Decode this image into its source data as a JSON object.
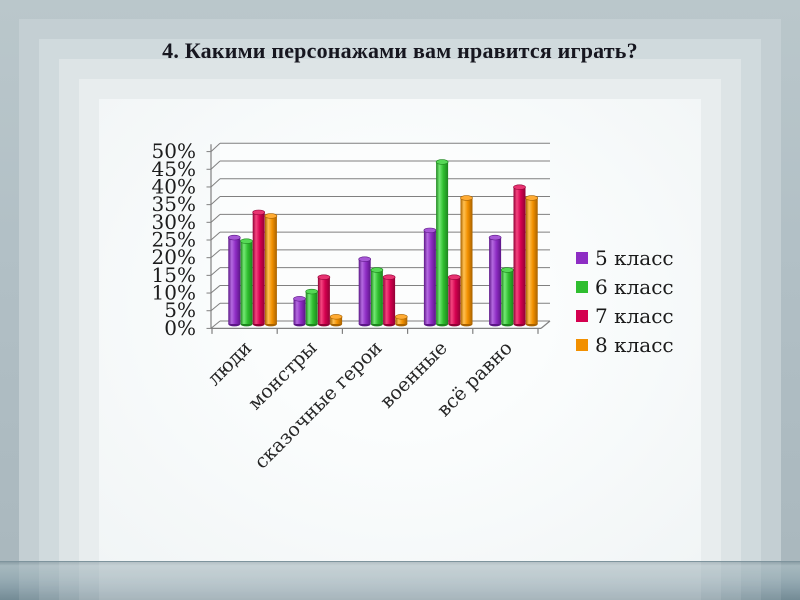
{
  "slide": {
    "title": "4. Какими персонажами вам нравится играть?"
  },
  "chart_data": {
    "type": "bar",
    "subtype": "3d-cylinder-column",
    "title": "",
    "xlabel": "",
    "ylabel": "",
    "categories": [
      "люди",
      "монстры",
      "сказочные герои",
      "военные",
      "всё равно"
    ],
    "series": [
      {
        "name": "5 класс",
        "color": "#8e2dc4",
        "light": "#b46ae0",
        "dark": "#5c1687",
        "cap": "#a758d6",
        "values": [
          24,
          7,
          18,
          26,
          24
        ]
      },
      {
        "name": "6 класс",
        "color": "#2fbe2f",
        "light": "#74e874",
        "dark": "#1e851e",
        "cap": "#55d855",
        "values": [
          23,
          9,
          15,
          45,
          15
        ]
      },
      {
        "name": "7 класс",
        "color": "#d4004f",
        "light": "#f4447f",
        "dark": "#910035",
        "cap": "#e83371",
        "values": [
          31,
          13,
          13,
          13,
          38
        ]
      },
      {
        "name": "8 класс",
        "color": "#f29000",
        "light": "#ffc050",
        "dark": "#a86200",
        "cap": "#ffab33",
        "values": [
          30,
          2,
          2,
          35,
          35
        ]
      }
    ],
    "ylim": [
      0,
      50
    ],
    "ytick_step": 5,
    "ytick_labels": [
      "0%",
      "5%",
      "10%",
      "15%",
      "20%",
      "25%",
      "30%",
      "35%",
      "40%",
      "45%",
      "50%"
    ],
    "value_format": "percent",
    "grid": true,
    "legend_position": "right"
  }
}
